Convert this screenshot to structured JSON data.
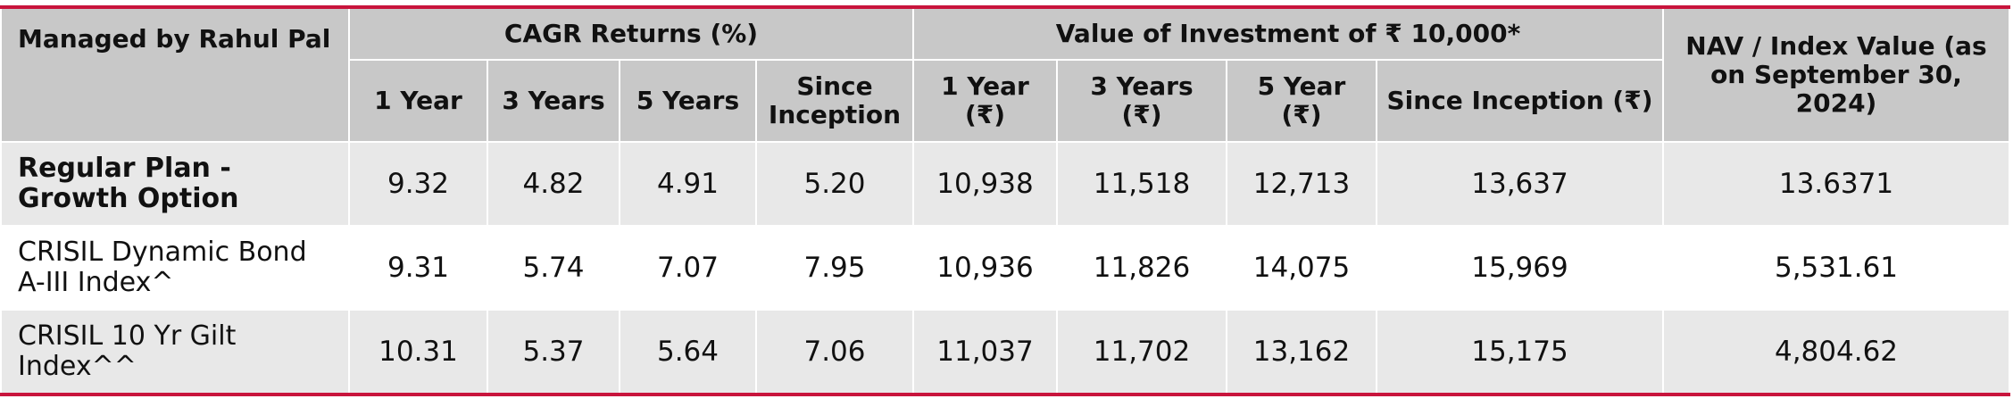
{
  "header": {
    "managed_by": "Managed by Rahul Pal",
    "cagr_group": "CAGR Returns (%)",
    "value_group": "Value of Investment of ₹ 10,000*",
    "nav_header": "NAV / Index Value (as on September 30, 2024)",
    "cagr_columns": [
      "1 Year",
      "3 Years",
      "5 Years",
      "Since Inception"
    ],
    "value_columns": [
      "1 Year (₹)",
      "3 Years (₹)",
      "5 Year (₹)",
      "Since Inception (₹)"
    ]
  },
  "rows": [
    {
      "label": "Regular Plan - Growth Option",
      "cagr": [
        "9.32",
        "4.82",
        "4.91",
        "5.20"
      ],
      "value": [
        "10,938",
        "11,518",
        "12,713",
        "13,637"
      ],
      "nav": "13.6371"
    },
    {
      "label": "CRISIL Dynamic Bond A-III Index^",
      "cagr": [
        "9.31",
        "5.74",
        "7.07",
        "7.95"
      ],
      "value": [
        "10,936",
        "11,826",
        "14,075",
        "15,969"
      ],
      "nav": "5,531.61"
    },
    {
      "label": "CRISIL 10 Yr Gilt Index^^",
      "cagr": [
        "10.31",
        "5.37",
        "5.64",
        "7.06"
      ],
      "value": [
        "11,037",
        "11,702",
        "13,162",
        "15,175"
      ],
      "nav": "4,804.62"
    }
  ],
  "colors": {
    "accent_border": "#c8143c",
    "header_bg": "#c8c8c8",
    "row_shaded_bg": "#e8e8e8"
  }
}
